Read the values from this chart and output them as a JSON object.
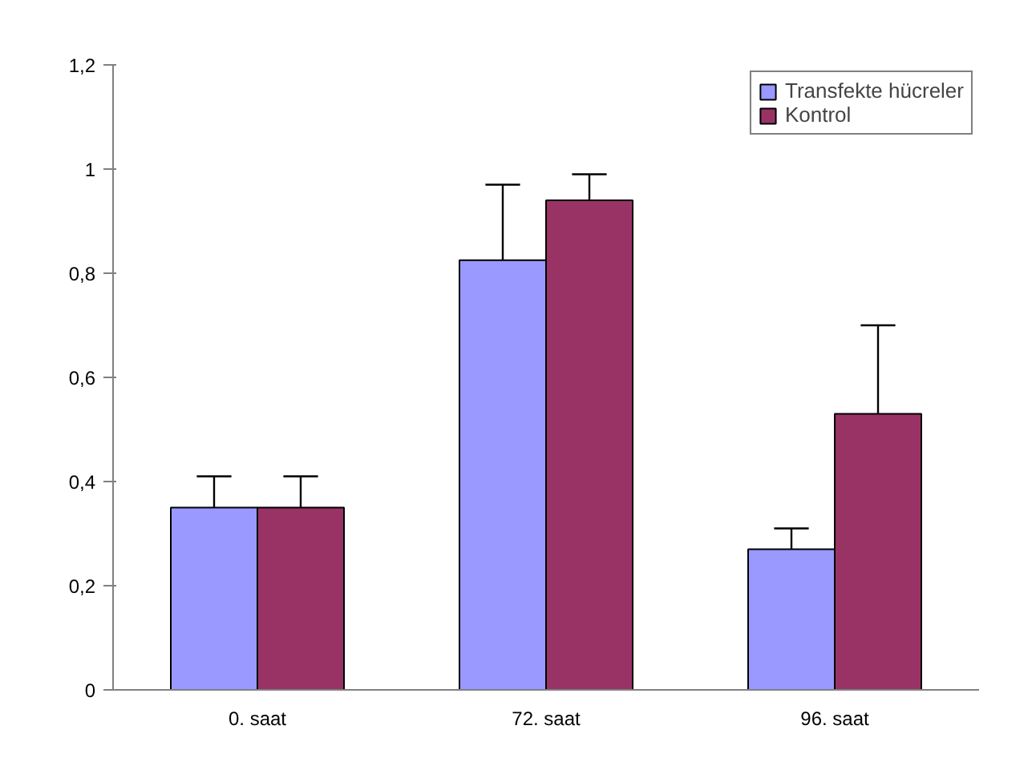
{
  "chart_data": {
    "type": "bar",
    "categories": [
      "0. saat",
      "72. saat",
      "96. saat"
    ],
    "series": [
      {
        "name": "Transfekte hücreler",
        "color": "#9999ff",
        "values": [
          0.35,
          0.825,
          0.27
        ],
        "errors": [
          [
            0.35,
            0.41
          ],
          [
            0.825,
            0.97
          ],
          [
            0.27,
            0.31
          ]
        ]
      },
      {
        "name": "Kontrol",
        "color": "#993366",
        "values": [
          0.35,
          0.94,
          0.53
        ],
        "errors": [
          [
            0.35,
            0.41
          ],
          [
            0.94,
            0.99
          ],
          [
            0.53,
            0.7
          ]
        ]
      }
    ],
    "ylim": [
      0,
      1.2
    ],
    "yticks": [
      {
        "value": 0,
        "label": "0"
      },
      {
        "value": 0.2,
        "label": "0,2"
      },
      {
        "value": 0.4,
        "label": "0,4"
      },
      {
        "value": 0.6,
        "label": "0,6"
      },
      {
        "value": 0.8,
        "label": "0,8"
      },
      {
        "value": 1,
        "label": "1"
      },
      {
        "value": 1.2,
        "label": "1,2"
      }
    ],
    "grid": false,
    "legend": "top right"
  }
}
